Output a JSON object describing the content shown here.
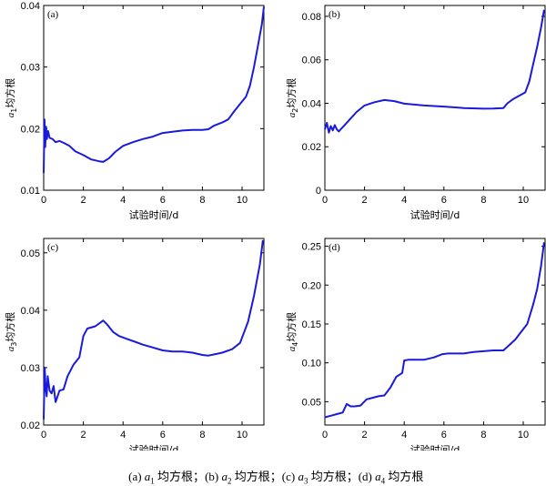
{
  "caption": {
    "parts": [
      {
        "tag": "(a) ",
        "sym": "a",
        "sub": "1",
        "text": " 均方根；"
      },
      {
        "tag": "(b) ",
        "sym": "a",
        "sub": "2",
        "text": " 均方根；"
      },
      {
        "tag": "(c) ",
        "sym": "a",
        "sub": "3",
        "text": " 均方根；"
      },
      {
        "tag": "(d) ",
        "sym": "a",
        "sub": "4",
        "text": " 均方根"
      }
    ]
  },
  "colors": {
    "series": "#1a1adc",
    "axis": "#000000"
  },
  "chart_data": [
    {
      "type": "line",
      "tag": "(a)",
      "xlabel": "试验时间/d",
      "ylabel_sym": "a",
      "ylabel_sub": "1",
      "ylabel_text": "均方根",
      "xlim": [
        0,
        11.1
      ],
      "ylim": [
        0.01,
        0.04
      ],
      "xticks": [
        0,
        2,
        4,
        6,
        8,
        10
      ],
      "yticks": [
        0.01,
        0.02,
        0.03,
        0.04
      ],
      "ytick_labels": [
        "0.01",
        "0.02",
        "0.03",
        "0.04"
      ],
      "series": [
        {
          "x": [
            0,
            0.04,
            0.08,
            0.12,
            0.16,
            0.22,
            0.3,
            0.45,
            0.6,
            0.8,
            1.0,
            1.3,
            1.6,
            2.0,
            2.4,
            2.8,
            3.0,
            3.3,
            3.6,
            4.0,
            4.5,
            5.0,
            5.5,
            6.0,
            6.5,
            7.0,
            7.5,
            8.0,
            8.3,
            8.6,
            9.0,
            9.3,
            9.6,
            9.9,
            10.2,
            10.4,
            10.6,
            10.8,
            11.0,
            11.1
          ],
          "y": [
            0.0128,
            0.0215,
            0.017,
            0.0203,
            0.0183,
            0.0196,
            0.0185,
            0.0183,
            0.0178,
            0.018,
            0.0177,
            0.0172,
            0.0163,
            0.0157,
            0.015,
            0.0147,
            0.0146,
            0.0152,
            0.0162,
            0.0172,
            0.0178,
            0.0183,
            0.0187,
            0.0193,
            0.0195,
            0.0197,
            0.0198,
            0.0198,
            0.0199,
            0.0205,
            0.021,
            0.0215,
            0.0228,
            0.024,
            0.0252,
            0.027,
            0.03,
            0.0335,
            0.037,
            0.0398
          ]
        }
      ]
    },
    {
      "type": "line",
      "tag": "(b)",
      "xlabel": "试验时间/d",
      "ylabel_sym": "a",
      "ylabel_sub": "2",
      "ylabel_text": "均方根",
      "xlim": [
        0,
        11.1
      ],
      "ylim": [
        0,
        0.085
      ],
      "xticks": [
        0,
        2,
        4,
        6,
        8,
        10
      ],
      "yticks": [
        0,
        0.02,
        0.04,
        0.06,
        0.08
      ],
      "ytick_labels": [
        "0",
        "0.02",
        "0.04",
        "0.06",
        "0.08"
      ],
      "series": [
        {
          "x": [
            0,
            0.1,
            0.2,
            0.3,
            0.4,
            0.5,
            0.6,
            0.7,
            0.8,
            1.0,
            1.3,
            1.6,
            2.0,
            2.5,
            3.0,
            3.5,
            4.0,
            5.0,
            6.0,
            7.0,
            8.0,
            8.5,
            9.0,
            9.2,
            9.5,
            9.8,
            10.1,
            10.3,
            10.5,
            10.7,
            10.9,
            11.05
          ],
          "y": [
            0.028,
            0.031,
            0.0265,
            0.0295,
            0.0275,
            0.03,
            0.028,
            0.027,
            0.028,
            0.03,
            0.033,
            0.036,
            0.039,
            0.0405,
            0.0415,
            0.041,
            0.0398,
            0.039,
            0.0385,
            0.0378,
            0.0375,
            0.0376,
            0.0378,
            0.04,
            0.042,
            0.0435,
            0.045,
            0.05,
            0.058,
            0.066,
            0.075,
            0.083
          ]
        }
      ]
    },
    {
      "type": "line",
      "tag": "(c)",
      "xlabel": "试验时间/d",
      "ylabel_sym": "a",
      "ylabel_sub": "3",
      "ylabel_text": "均方根",
      "xlim": [
        0,
        11.1
      ],
      "ylim": [
        0.02,
        0.0525
      ],
      "xticks": [
        0,
        2,
        4,
        6,
        8,
        10
      ],
      "yticks": [
        0.02,
        0.03,
        0.04,
        0.05
      ],
      "ytick_labels": [
        "0.02",
        "0.03",
        "0.04",
        "0.05"
      ],
      "series": [
        {
          "x": [
            0,
            0.05,
            0.1,
            0.15,
            0.2,
            0.3,
            0.4,
            0.5,
            0.6,
            0.8,
            1.0,
            1.2,
            1.5,
            1.8,
            2.0,
            2.2,
            2.6,
            3.0,
            3.2,
            3.5,
            3.8,
            4.2,
            4.6,
            5.0,
            5.5,
            6.0,
            6.5,
            7.0,
            7.5,
            8.0,
            8.3,
            8.6,
            9.0,
            9.5,
            9.9,
            10.3,
            10.6,
            10.9,
            11.05
          ],
          "y": [
            0.021,
            0.03,
            0.0265,
            0.025,
            0.0285,
            0.026,
            0.0255,
            0.0268,
            0.024,
            0.026,
            0.0262,
            0.0285,
            0.0305,
            0.0318,
            0.0355,
            0.0368,
            0.0372,
            0.0382,
            0.0375,
            0.0362,
            0.0355,
            0.035,
            0.0345,
            0.034,
            0.0335,
            0.033,
            0.0328,
            0.0328,
            0.0326,
            0.0322,
            0.0321,
            0.0323,
            0.0326,
            0.0332,
            0.0343,
            0.038,
            0.0425,
            0.048,
            0.0522
          ]
        }
      ]
    },
    {
      "type": "line",
      "tag": "(d)",
      "xlabel": "试验时间/d",
      "ylabel_sym": "a",
      "ylabel_sub": "4",
      "ylabel_text": "均方根",
      "xlim": [
        0,
        11.1
      ],
      "ylim": [
        0.02,
        0.26
      ],
      "xticks": [
        0,
        2,
        4,
        6,
        8,
        10
      ],
      "yticks": [
        0.05,
        0.1,
        0.15,
        0.2,
        0.25
      ],
      "ytick_labels": [
        "0.05",
        "0.10",
        "0.15",
        "0.20",
        "0.25"
      ],
      "series": [
        {
          "x": [
            0,
            0.3,
            0.6,
            0.9,
            1.1,
            1.3,
            1.5,
            1.8,
            2.1,
            2.4,
            2.7,
            3.0,
            3.3,
            3.6,
            3.9,
            4.0,
            4.2,
            4.6,
            5.0,
            5.5,
            5.9,
            6.2,
            7.0,
            7.5,
            8.0,
            8.5,
            9.0,
            9.3,
            9.6,
            9.9,
            10.2,
            10.5,
            10.7,
            10.9,
            11.05
          ],
          "y": [
            0.03,
            0.032,
            0.034,
            0.036,
            0.047,
            0.044,
            0.044,
            0.045,
            0.053,
            0.055,
            0.057,
            0.058,
            0.068,
            0.082,
            0.087,
            0.103,
            0.104,
            0.104,
            0.104,
            0.107,
            0.111,
            0.112,
            0.112,
            0.114,
            0.115,
            0.116,
            0.116,
            0.123,
            0.13,
            0.14,
            0.15,
            0.175,
            0.195,
            0.225,
            0.255
          ]
        }
      ]
    }
  ]
}
